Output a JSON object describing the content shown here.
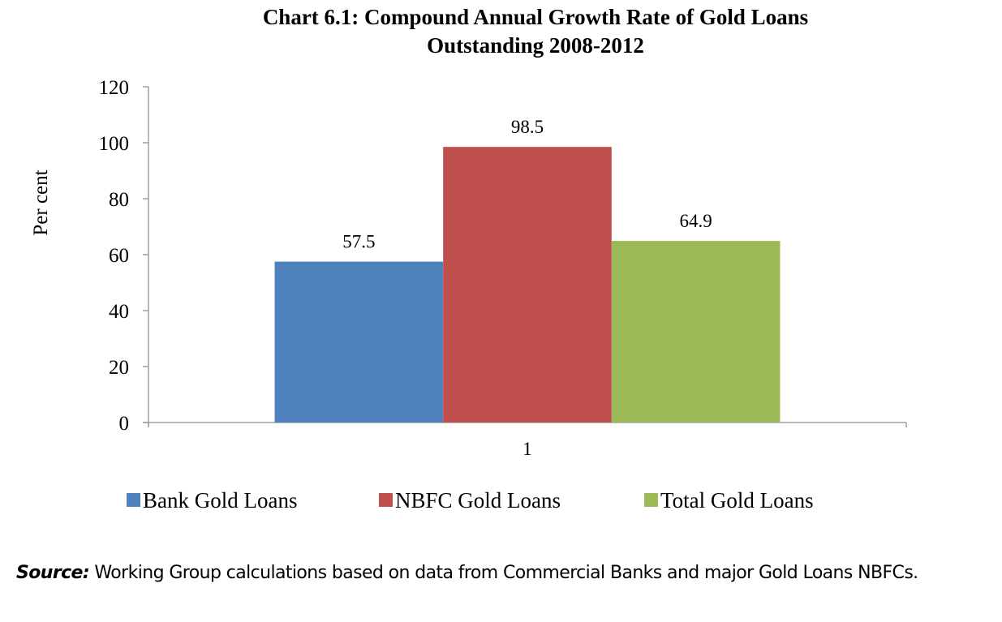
{
  "chart_data": {
    "type": "bar",
    "title_lines": [
      "Chart  6.1: Compound Annual Growth Rate of Gold Loans",
      "Outstanding 2008-2012"
    ],
    "xlabel": "",
    "ylabel": "Per cent",
    "categories": [
      "1"
    ],
    "series": [
      {
        "name": "Bank Gold Loans",
        "values": [
          57.5
        ],
        "color": "#4f81bd",
        "label": "57.5"
      },
      {
        "name": "NBFC Gold Loans",
        "values": [
          98.5
        ],
        "color": "#c0504d",
        "label": "98.5"
      },
      {
        "name": "Total Gold Loans",
        "values": [
          64.9
        ],
        "color": "#9bbb59",
        "label": "64.9"
      }
    ],
    "ylim": [
      0,
      120
    ],
    "yticks": [
      0,
      20,
      40,
      60,
      80,
      100,
      120
    ],
    "ytick_labels": [
      "0",
      "20",
      "40",
      "60",
      "80",
      "100",
      "120"
    ],
    "grid": false,
    "legend_position": "bottom",
    "axis_color": "#a0a0a0"
  },
  "source": {
    "label": "Source:",
    "text": " Working Group calculations based on data from Commercial Banks and major Gold Loans NBFCs."
  }
}
